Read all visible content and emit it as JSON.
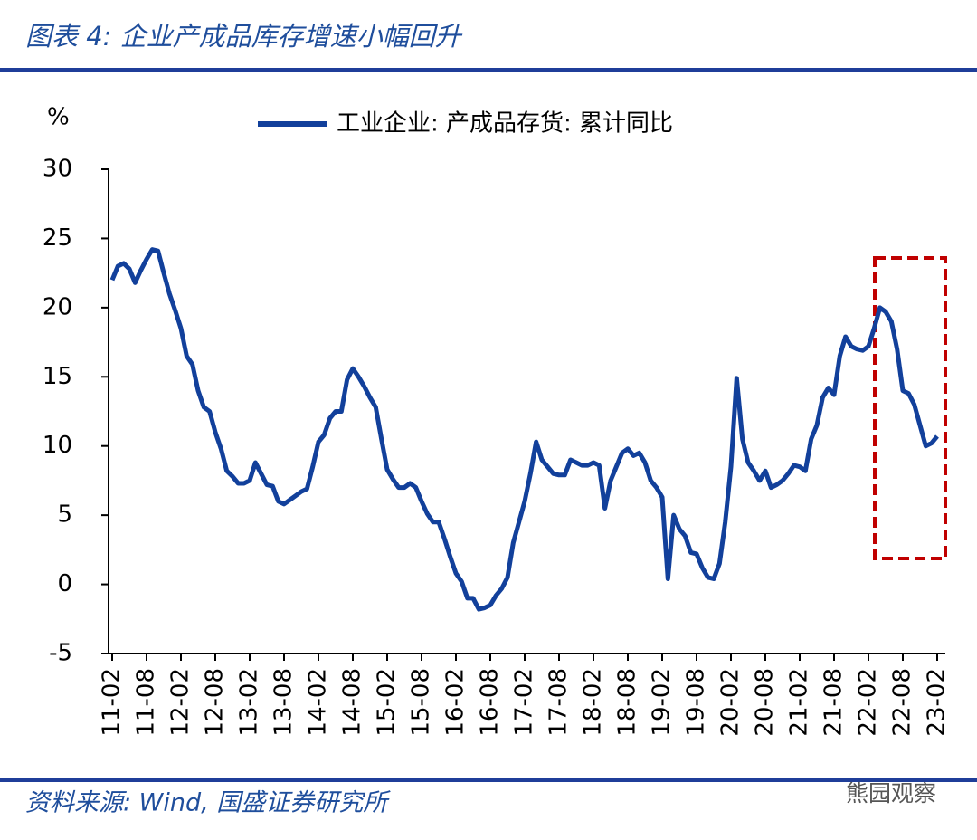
{
  "chart_data": {
    "type": "line",
    "title": "图表 4:  企业产成品库存增速小幅回升",
    "y_label": "%",
    "source": "资料来源:  Wind, 国盛证券研究所",
    "watermark": "熊园观察",
    "categories": [
      "11-02",
      null,
      null,
      null,
      null,
      null,
      "11-08",
      null,
      null,
      null,
      null,
      null,
      "12-02",
      null,
      null,
      null,
      null,
      null,
      "12-08",
      null,
      null,
      null,
      null,
      null,
      "13-02",
      null,
      null,
      null,
      null,
      null,
      "13-08",
      null,
      null,
      null,
      null,
      null,
      "14-02",
      null,
      null,
      null,
      null,
      null,
      "14-08",
      null,
      null,
      null,
      null,
      null,
      "15-02",
      null,
      null,
      null,
      null,
      null,
      "15-08",
      null,
      null,
      null,
      null,
      null,
      "16-02",
      null,
      null,
      null,
      null,
      null,
      "16-08",
      null,
      null,
      null,
      null,
      null,
      "17-02",
      null,
      null,
      null,
      null,
      null,
      "17-08",
      null,
      null,
      null,
      null,
      null,
      "18-02",
      null,
      null,
      null,
      null,
      null,
      "18-08",
      null,
      null,
      null,
      null,
      null,
      "19-02",
      null,
      null,
      null,
      null,
      null,
      "19-08",
      null,
      null,
      null,
      null,
      null,
      "20-02",
      null,
      null,
      null,
      null,
      null,
      "20-08",
      null,
      null,
      null,
      null,
      null,
      "21-02",
      null,
      null,
      null,
      null,
      null,
      "21-08",
      null,
      null,
      null,
      null,
      null,
      "22-02",
      null,
      null,
      null,
      null,
      null,
      "22-08",
      null,
      null,
      null,
      null,
      null,
      "23-02"
    ],
    "series": [
      {
        "name": "工业企业: 产成品存货: 累计同比",
        "color": "#12409b",
        "values": [
          22,
          23,
          23.2,
          22.8,
          21.8,
          22.7,
          23.5,
          24.2,
          24.1,
          22.5,
          21,
          19.8,
          18.5,
          16.5,
          15.9,
          14,
          12.8,
          12.5,
          11,
          9.8,
          8.2,
          7.8,
          7.3,
          7.3,
          7.5,
          8.8,
          8,
          7.2,
          7.1,
          6,
          5.8,
          6.1,
          6.4,
          6.7,
          6.9,
          8.5,
          10.3,
          10.8,
          12,
          12.5,
          12.5,
          14.8,
          15.6,
          15,
          14.3,
          13.5,
          12.8,
          10.5,
          8.3,
          7.6,
          7,
          7,
          7.3,
          7,
          6,
          5.1,
          4.5,
          4.5,
          3.3,
          2,
          0.8,
          0.2,
          -1,
          -1,
          -1.8,
          -1.7,
          -1.5,
          -0.8,
          -0.3,
          0.5,
          3,
          4.5,
          6,
          8,
          10.3,
          9,
          8.5,
          8,
          7.9,
          7.9,
          9,
          8.8,
          8.6,
          8.6,
          8.8,
          8.6,
          5.5,
          7.5,
          8.5,
          9.5,
          9.8,
          9.3,
          9.5,
          8.8,
          7.5,
          7,
          6.3,
          0.4,
          5,
          4,
          3.5,
          2.3,
          2.2,
          1.2,
          0.5,
          0.4,
          1.5,
          4.5,
          8.5,
          14.9,
          10.5,
          8.8,
          8.2,
          7.5,
          8.2,
          7,
          7.2,
          7.5,
          8,
          8.6,
          8.5,
          8.2,
          10.5,
          11.5,
          13.5,
          14.2,
          13.7,
          16.5,
          17.9,
          17.2,
          17,
          16.9,
          17.2,
          18.5,
          20,
          19.7,
          19,
          17,
          14,
          13.8,
          13,
          11.5,
          10,
          10.2,
          10.7
        ]
      }
    ],
    "ylim": [
      -5,
      30
    ],
    "yticks": [
      -5,
      0,
      5,
      10,
      15,
      20,
      25,
      30
    ],
    "grid": false
  }
}
